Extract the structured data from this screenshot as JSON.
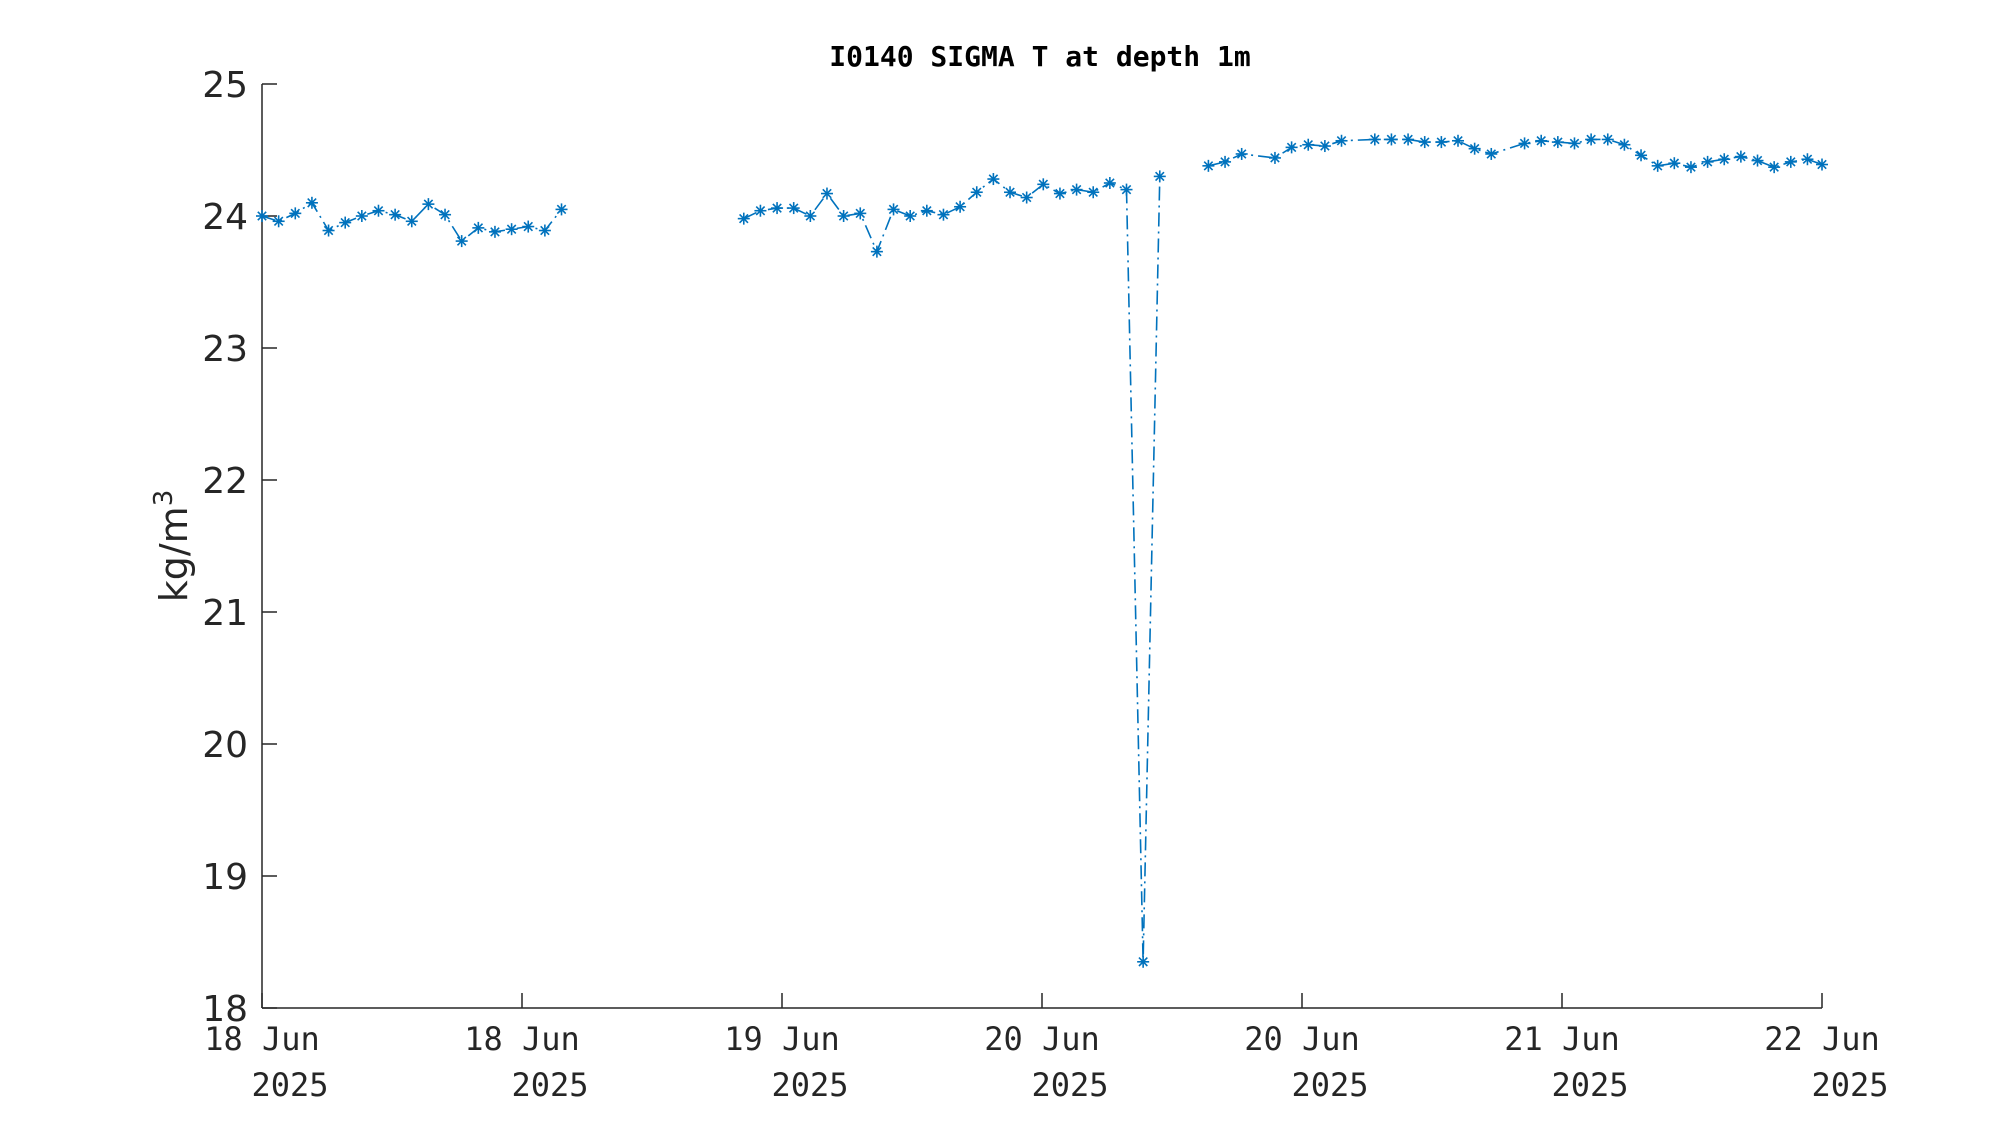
{
  "chart_data": {
    "type": "line",
    "title": "I0140 SIGMA T at depth 1m",
    "xlabel": "",
    "ylabel": "kg/m",
    "ylabel_superscript": "3",
    "ylim": [
      18,
      25
    ],
    "yticks": [
      18,
      19,
      20,
      21,
      22,
      23,
      24,
      25
    ],
    "xlim": [
      0,
      6
    ],
    "xticks": [
      {
        "pos": 0,
        "line1": "18 Jun",
        "line2": "2025"
      },
      {
        "pos": 1,
        "line1": "18 Jun",
        "line2": "2025"
      },
      {
        "pos": 2,
        "line1": "19 Jun",
        "line2": "2025"
      },
      {
        "pos": 3,
        "line1": "20 Jun",
        "line2": "2025"
      },
      {
        "pos": 4,
        "line1": "20 Jun",
        "line2": "2025"
      },
      {
        "pos": 5,
        "line1": "21 Jun",
        "line2": "2025"
      },
      {
        "pos": 6,
        "line1": "22 Jun",
        "line2": "2025"
      }
    ],
    "grid": false,
    "series": [
      {
        "color": "#0072BD",
        "marker": "asterisk",
        "line_style": "dash-dot",
        "segments": [
          [
            [
              0.0,
              24.0
            ],
            [
              0.064,
              23.96
            ],
            [
              0.128,
              24.02
            ],
            [
              0.192,
              24.1
            ],
            [
              0.256,
              23.89
            ],
            [
              0.32,
              23.95
            ],
            [
              0.384,
              24.0
            ],
            [
              0.448,
              24.04
            ],
            [
              0.512,
              24.01
            ],
            [
              0.576,
              23.96
            ],
            [
              0.64,
              24.09
            ],
            [
              0.704,
              24.01
            ],
            [
              0.768,
              23.81
            ],
            [
              0.832,
              23.91
            ],
            [
              0.896,
              23.88
            ],
            [
              0.96,
              23.9
            ],
            [
              1.024,
              23.92
            ],
            [
              1.088,
              23.89
            ],
            [
              1.152,
              24.05
            ]
          ],
          [
            [
              1.853,
              23.98
            ],
            [
              1.917,
              24.04
            ],
            [
              1.981,
              24.06
            ],
            [
              2.045,
              24.06
            ],
            [
              2.109,
              24.0
            ],
            [
              2.173,
              24.17
            ],
            [
              2.237,
              24.0
            ],
            [
              2.301,
              24.02
            ],
            [
              2.365,
              23.73
            ],
            [
              2.429,
              24.05
            ],
            [
              2.493,
              24.0
            ],
            [
              2.557,
              24.04
            ],
            [
              2.621,
              24.01
            ],
            [
              2.685,
              24.07
            ],
            [
              2.749,
              24.18
            ],
            [
              2.813,
              24.28
            ],
            [
              2.877,
              24.18
            ],
            [
              2.941,
              24.14
            ],
            [
              3.005,
              24.24
            ],
            [
              3.069,
              24.17
            ],
            [
              3.133,
              24.2
            ],
            [
              3.197,
              24.18
            ],
            [
              3.261,
              24.25
            ],
            [
              3.325,
              24.2
            ],
            [
              3.389,
              18.35
            ],
            [
              3.453,
              24.3
            ]
          ],
          [
            [
              3.64,
              24.38
            ],
            [
              3.704,
              24.41
            ],
            [
              3.768,
              24.47
            ],
            [
              3.896,
              24.44
            ],
            [
              3.96,
              24.52
            ],
            [
              4.024,
              24.54
            ],
            [
              4.088,
              24.53
            ],
            [
              4.152,
              24.57
            ],
            [
              4.28,
              24.58
            ],
            [
              4.344,
              24.58
            ],
            [
              4.408,
              24.58
            ],
            [
              4.472,
              24.56
            ],
            [
              4.536,
              24.56
            ],
            [
              4.6,
              24.57
            ],
            [
              4.664,
              24.51
            ],
            [
              4.728,
              24.47
            ],
            [
              4.856,
              24.55
            ],
            [
              4.92,
              24.57
            ],
            [
              4.984,
              24.56
            ],
            [
              5.048,
              24.55
            ],
            [
              5.112,
              24.58
            ],
            [
              5.176,
              24.58
            ],
            [
              5.24,
              24.54
            ],
            [
              5.304,
              24.46
            ],
            [
              5.368,
              24.38
            ],
            [
              5.432,
              24.4
            ],
            [
              5.496,
              24.37
            ],
            [
              5.56,
              24.41
            ],
            [
              5.624,
              24.43
            ],
            [
              5.688,
              24.45
            ],
            [
              5.752,
              24.42
            ],
            [
              5.816,
              24.37
            ],
            [
              5.88,
              24.41
            ],
            [
              5.944,
              24.43
            ],
            [
              6.0,
              24.39
            ]
          ]
        ]
      }
    ]
  }
}
